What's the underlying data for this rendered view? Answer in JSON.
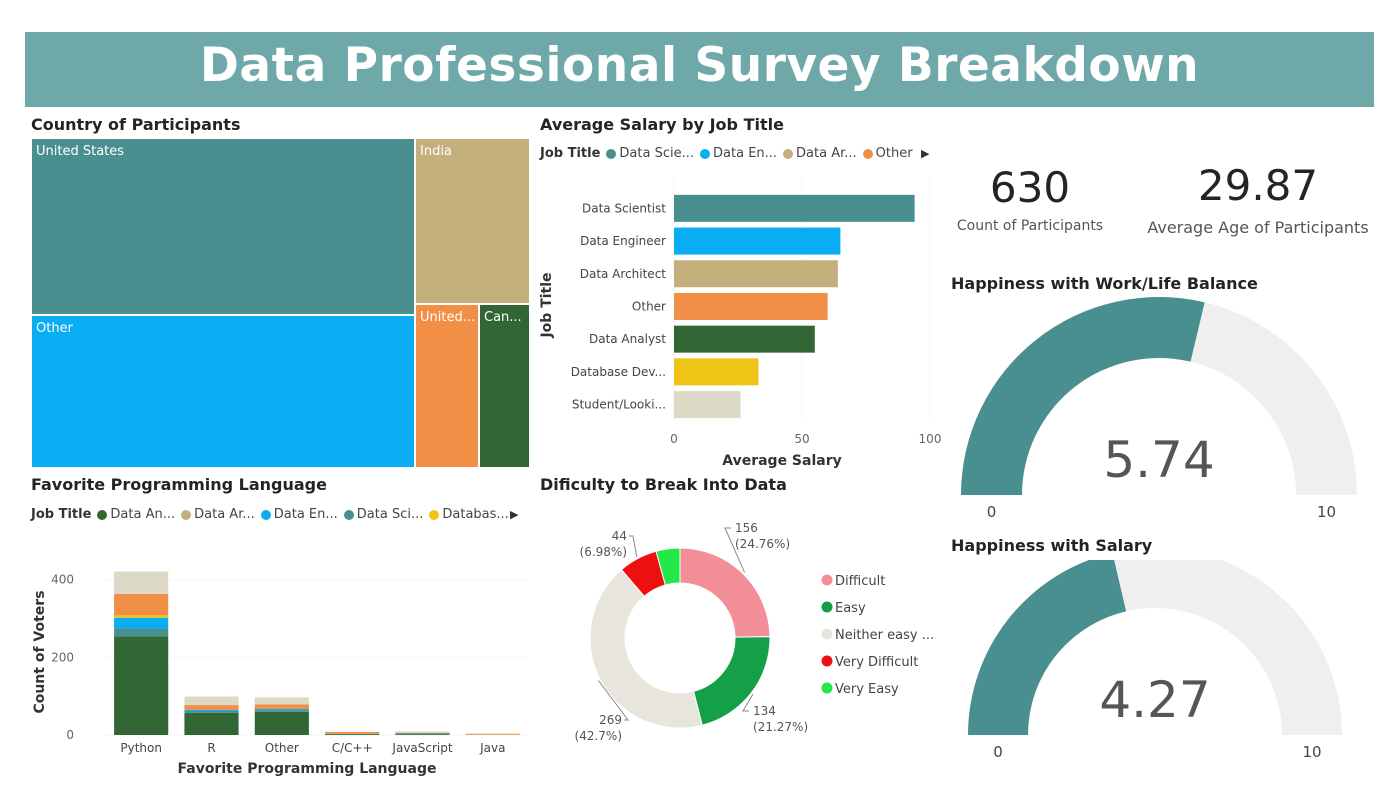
{
  "header": {
    "title": "Data Professional Survey Breakdown"
  },
  "colors": {
    "banner": "#6fa8a8",
    "data_scientist": "#4a8f8f",
    "data_engineer": "#0aacf2",
    "data_architect": "#c4b07d",
    "other": "#f18f47",
    "data_analyst": "#326634",
    "database_dev": "#f0c417",
    "student": "#dcdac7",
    "gauge_track": "#efefef"
  },
  "kpis": {
    "participants_value": "630",
    "participants_label": "Count of Participants",
    "age_value": "29.87",
    "age_label": "Average Age of Participants"
  },
  "charts": [
    {
      "id": "treemap",
      "title": "Country of Participants",
      "chart_data": {
        "type": "treemap",
        "items": [
          {
            "label": "United States",
            "color": "#4a8f8f"
          },
          {
            "label": "Other",
            "color": "#0aacf2"
          },
          {
            "label": "India",
            "color": "#c4b07d"
          },
          {
            "label": "United...",
            "color": "#f18f47"
          },
          {
            "label": "Can...",
            "color": "#326634"
          }
        ]
      }
    },
    {
      "id": "salary",
      "title": "Average Salary by Job Title",
      "legend": {
        "title": "Job Title",
        "items": [
          {
            "label": "Data Scie...",
            "color": "#4a8f8f"
          },
          {
            "label": "Data En...",
            "color": "#0aacf2"
          },
          {
            "label": "Data Ar...",
            "color": "#c4b07d"
          },
          {
            "label": "Other",
            "color": "#f18f47"
          }
        ]
      },
      "chart_data": {
        "type": "bar",
        "orientation": "horizontal",
        "categories": [
          "Data Scientist",
          "Data Engineer",
          "Data Architect",
          "Other",
          "Data Analyst",
          "Database Dev...",
          "Student/Looki..."
        ],
        "values": [
          94,
          65,
          64,
          60,
          55,
          33,
          26
        ],
        "colors": [
          "#4a8f8f",
          "#0aacf2",
          "#c4b07d",
          "#f18f47",
          "#326634",
          "#f0c417",
          "#dcdac7"
        ],
        "xlabel": "Average Salary",
        "ylabel": "Job Title",
        "xlim": [
          0,
          100
        ],
        "xticks": [
          0,
          50,
          100
        ]
      }
    },
    {
      "id": "language",
      "title": "Favorite Programming Language",
      "legend": {
        "title": "Job Title",
        "items": [
          {
            "label": "Data An...",
            "color": "#326634"
          },
          {
            "label": "Data Ar...",
            "color": "#c4b07d"
          },
          {
            "label": "Data En...",
            "color": "#0aacf2"
          },
          {
            "label": "Data Sci...",
            "color": "#4a8f8f"
          },
          {
            "label": "Databas...",
            "color": "#f0c417"
          }
        ]
      },
      "chart_data": {
        "type": "bar",
        "stacked": true,
        "categories": [
          "Python",
          "R",
          "Other",
          "C/C++",
          "JavaScript",
          "Java"
        ],
        "series": [
          {
            "name": "Data Analyst",
            "color": "#326634",
            "values": [
              254,
              57,
              60,
              2,
              2,
              0
            ]
          },
          {
            "name": "Data Scientist",
            "color": "#4a8f8f",
            "values": [
              20,
              5,
              4,
              1,
              2,
              0
            ]
          },
          {
            "name": "Data Engineer",
            "color": "#0aacf2",
            "values": [
              28,
              3,
              3,
              0,
              1,
              0
            ]
          },
          {
            "name": "Database Dev",
            "color": "#f0c417",
            "values": [
              6,
              0,
              0,
              0,
              0,
              0
            ]
          },
          {
            "name": "Other",
            "color": "#f18f47",
            "values": [
              55,
              12,
              12,
              5,
              1,
              3
            ]
          },
          {
            "name": "Student",
            "color": "#dcdac7",
            "values": [
              58,
              22,
              18,
              0,
              3,
              1
            ]
          }
        ],
        "xlabel": "Favorite Programming Language",
        "ylabel": "Count of Voters",
        "ylim": [
          0,
          430
        ],
        "yticks": [
          0,
          200,
          400
        ]
      }
    },
    {
      "id": "difficulty",
      "title": "Dificulty to Break Into Data",
      "chart_data": {
        "type": "pie",
        "donut": true,
        "slices": [
          {
            "label": "Difficult",
            "value": 156,
            "pct": "(24.76%)",
            "color": "#f28e97"
          },
          {
            "label": "Easy",
            "value": 134,
            "pct": "(21.27%)",
            "color": "#14a046"
          },
          {
            "label": "Neither easy ...",
            "value": 269,
            "pct": "(42.7%)",
            "color": "#e8e6dc"
          },
          {
            "label": "Very Difficult",
            "value": 44,
            "pct": "(6.98%)",
            "color": "#ee0f0f"
          },
          {
            "label": "Very Easy",
            "value": 27,
            "pct": "",
            "color": "#22e84a"
          }
        ]
      }
    },
    {
      "id": "gauge_worklife",
      "title": "Happiness with Work/Life Balance",
      "chart_data": {
        "type": "gauge",
        "value": 5.74,
        "value_label": "5.74",
        "min": 0,
        "max": 10,
        "min_label": "0",
        "max_label": "10"
      }
    },
    {
      "id": "gauge_salary",
      "title": "Happiness with Salary",
      "chart_data": {
        "type": "gauge",
        "value": 4.27,
        "value_label": "4.27",
        "min": 0,
        "max": 10,
        "min_label": "0",
        "max_label": "10"
      }
    }
  ]
}
